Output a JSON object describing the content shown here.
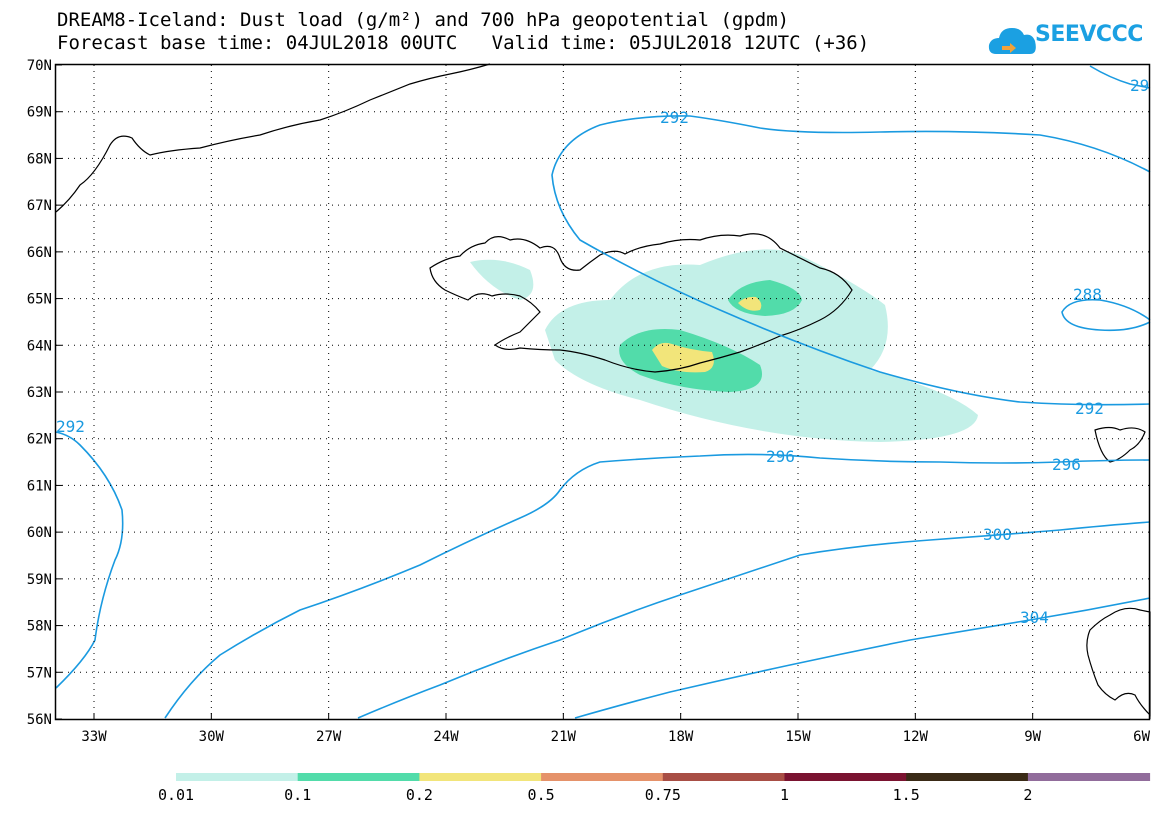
{
  "title": {
    "line1": "DREAM8-Iceland: Dust load (g/m²) and 700 hPa geopotential (gpdm)",
    "line2": "Forecast base time: 04JUL2018 00UTC   Valid time: 05JUL2018 12UTC (+36)"
  },
  "logo": {
    "text": "SEEVCCC",
    "icon": "cloud-logo-icon",
    "color": "#1ba0e2"
  },
  "map": {
    "lat_labels": [
      "70N",
      "69N",
      "68N",
      "67N",
      "66N",
      "65N",
      "64N",
      "63N",
      "62N",
      "61N",
      "60N",
      "59N",
      "58N",
      "57N",
      "56N"
    ],
    "lon_labels": [
      "33W",
      "30W",
      "27W",
      "24W",
      "21W",
      "18W",
      "15W",
      "12W",
      "9W",
      "6W"
    ],
    "contour_labels": [
      "292",
      "292",
      "288",
      "292",
      "296",
      "296",
      "300",
      "304",
      "292",
      "29"
    ],
    "contour_color": "#1a9ae0",
    "coast_color": "#000000"
  },
  "legend": {
    "colors": [
      "#c3f0e8",
      "#52dcaa",
      "#f2e57a",
      "#e5926a",
      "#a84e45",
      "#7a1330",
      "#3a2a16",
      "#916c9b"
    ],
    "labels": [
      "0.01",
      "0.1",
      "0.2",
      "0.5",
      "0.75",
      "1",
      "1.5",
      "2"
    ]
  }
}
